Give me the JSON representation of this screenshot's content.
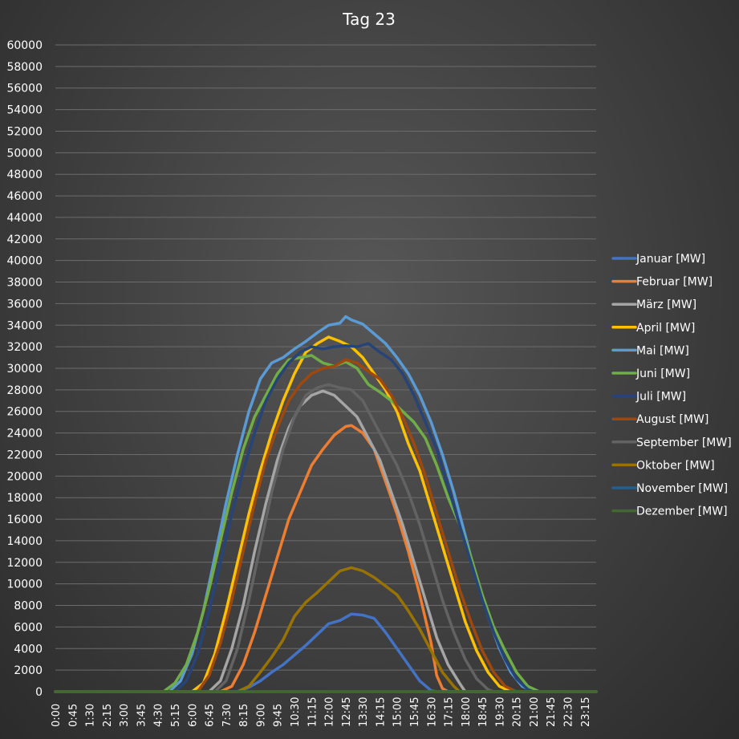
{
  "chart_data": {
    "type": "line",
    "title": "Tag 23",
    "xlabel": "",
    "ylabel": "",
    "ylim": [
      0,
      60000
    ],
    "yticks": [
      0,
      2000,
      4000,
      6000,
      8000,
      10000,
      12000,
      14000,
      16000,
      18000,
      20000,
      22000,
      24000,
      26000,
      28000,
      30000,
      32000,
      34000,
      36000,
      38000,
      40000,
      42000,
      44000,
      46000,
      48000,
      50000,
      52000,
      54000,
      56000,
      58000,
      60000
    ],
    "x_tick_labels": [
      "0:00",
      "0:45",
      "1:30",
      "2:15",
      "3:00",
      "3:45",
      "4:30",
      "5:15",
      "6:00",
      "6:45",
      "7:30",
      "8:15",
      "9:00",
      "9:45",
      "10:30",
      "11:15",
      "12:00",
      "12:45",
      "13:30",
      "14:15",
      "15:00",
      "15:45",
      "16:30",
      "17:15",
      "18:00",
      "18:45",
      "19:30",
      "20:15",
      "21:00",
      "21:45",
      "22:30",
      "23:15"
    ],
    "x_unit": "hour of day, 15-minute steps",
    "grid": true,
    "legend_position": "right",
    "series": [
      {
        "name": "Januar [MW]",
        "color": "#4472c4",
        "points": [
          [
            8.0,
            0
          ],
          [
            8.5,
            400
          ],
          [
            9.0,
            1000
          ],
          [
            9.5,
            1800
          ],
          [
            10.0,
            2500
          ],
          [
            10.5,
            3400
          ],
          [
            11.0,
            4300
          ],
          [
            11.5,
            5300
          ],
          [
            12.0,
            6300
          ],
          [
            12.5,
            6600
          ],
          [
            13.0,
            7200
          ],
          [
            13.5,
            7100
          ],
          [
            14.0,
            6800
          ],
          [
            14.5,
            5500
          ],
          [
            15.0,
            4000
          ],
          [
            15.5,
            2500
          ],
          [
            16.0,
            1000
          ],
          [
            16.5,
            100
          ],
          [
            16.75,
            0
          ]
        ]
      },
      {
        "name": "Februar [MW]",
        "color": "#ed7d31",
        "points": [
          [
            7.25,
            0
          ],
          [
            7.75,
            500
          ],
          [
            8.25,
            2500
          ],
          [
            8.75,
            5500
          ],
          [
            9.25,
            9000
          ],
          [
            9.75,
            12500
          ],
          [
            10.25,
            16000
          ],
          [
            10.75,
            18500
          ],
          [
            11.25,
            21000
          ],
          [
            11.75,
            22500
          ],
          [
            12.25,
            23800
          ],
          [
            12.75,
            24600
          ],
          [
            13.0,
            24700
          ],
          [
            13.5,
            24000
          ],
          [
            14.0,
            22500
          ],
          [
            14.5,
            19500
          ],
          [
            15.0,
            16500
          ],
          [
            15.5,
            13000
          ],
          [
            16.0,
            9000
          ],
          [
            16.5,
            4500
          ],
          [
            16.75,
            1500
          ],
          [
            17.0,
            300
          ],
          [
            17.25,
            0
          ]
        ]
      },
      {
        "name": "März [MW]",
        "color": "#a5a5a5",
        "points": [
          [
            6.75,
            0
          ],
          [
            7.25,
            1000
          ],
          [
            7.75,
            4000
          ],
          [
            8.25,
            8000
          ],
          [
            8.75,
            13000
          ],
          [
            9.25,
            17500
          ],
          [
            9.75,
            21500
          ],
          [
            10.25,
            24500
          ],
          [
            10.75,
            26500
          ],
          [
            11.25,
            27500
          ],
          [
            11.75,
            27900
          ],
          [
            12.25,
            27500
          ],
          [
            12.75,
            26500
          ],
          [
            13.25,
            25500
          ],
          [
            13.75,
            23500
          ],
          [
            14.25,
            21500
          ],
          [
            14.75,
            18500
          ],
          [
            15.25,
            15500
          ],
          [
            15.75,
            12000
          ],
          [
            16.25,
            8500
          ],
          [
            16.75,
            5000
          ],
          [
            17.25,
            2500
          ],
          [
            17.75,
            800
          ],
          [
            18.0,
            0
          ]
        ]
      },
      {
        "name": "April [MW]",
        "color": "#ffc000",
        "points": [
          [
            6.0,
            0
          ],
          [
            6.5,
            800
          ],
          [
            7.0,
            3500
          ],
          [
            7.5,
            7500
          ],
          [
            8.0,
            12000
          ],
          [
            8.5,
            16500
          ],
          [
            9.0,
            20500
          ],
          [
            9.5,
            24000
          ],
          [
            10.0,
            27000
          ],
          [
            10.5,
            29500
          ],
          [
            11.0,
            31500
          ],
          [
            11.5,
            32300
          ],
          [
            12.0,
            32900
          ],
          [
            12.5,
            32500
          ],
          [
            13.0,
            32000
          ],
          [
            13.5,
            31000
          ],
          [
            14.0,
            29500
          ],
          [
            14.5,
            28000
          ],
          [
            15.0,
            26000
          ],
          [
            15.5,
            23000
          ],
          [
            16.0,
            20500
          ],
          [
            16.5,
            17000
          ],
          [
            17.0,
            13500
          ],
          [
            17.5,
            10000
          ],
          [
            18.0,
            6500
          ],
          [
            18.5,
            3800
          ],
          [
            19.0,
            1800
          ],
          [
            19.5,
            500
          ],
          [
            20.0,
            0
          ]
        ]
      },
      {
        "name": "Mai [MW]",
        "color": "#5b9bd5",
        "points": [
          [
            5.0,
            0
          ],
          [
            5.5,
            1000
          ],
          [
            6.0,
            3500
          ],
          [
            6.5,
            7500
          ],
          [
            7.0,
            12500
          ],
          [
            7.5,
            17500
          ],
          [
            8.0,
            22000
          ],
          [
            8.5,
            26000
          ],
          [
            9.0,
            29000
          ],
          [
            9.5,
            30500
          ],
          [
            10.0,
            31000
          ],
          [
            10.5,
            31800
          ],
          [
            11.0,
            32500
          ],
          [
            11.5,
            33300
          ],
          [
            12.0,
            34000
          ],
          [
            12.5,
            34200
          ],
          [
            12.75,
            34800
          ],
          [
            13.0,
            34500
          ],
          [
            13.5,
            34100
          ],
          [
            14.0,
            33200
          ],
          [
            14.5,
            32300
          ],
          [
            15.0,
            31000
          ],
          [
            15.5,
            29500
          ],
          [
            16.0,
            27500
          ],
          [
            16.5,
            25000
          ],
          [
            17.0,
            22000
          ],
          [
            17.5,
            18500
          ],
          [
            18.0,
            14500
          ],
          [
            18.5,
            10500
          ],
          [
            19.0,
            7000
          ],
          [
            19.5,
            4000
          ],
          [
            20.0,
            1800
          ],
          [
            20.5,
            500
          ],
          [
            21.0,
            0
          ]
        ]
      },
      {
        "name": "Juni [MW]",
        "color": "#70ad47",
        "points": [
          [
            4.75,
            0
          ],
          [
            5.25,
            800
          ],
          [
            5.75,
            2500
          ],
          [
            6.25,
            5500
          ],
          [
            6.75,
            9500
          ],
          [
            7.25,
            14000
          ],
          [
            7.75,
            18500
          ],
          [
            8.25,
            22500
          ],
          [
            8.75,
            25500
          ],
          [
            9.25,
            27500
          ],
          [
            9.75,
            29500
          ],
          [
            10.25,
            30800
          ],
          [
            10.75,
            31000
          ],
          [
            11.25,
            31200
          ],
          [
            11.75,
            30500
          ],
          [
            12.25,
            30200
          ],
          [
            12.75,
            30600
          ],
          [
            13.25,
            30000
          ],
          [
            13.75,
            28500
          ],
          [
            14.25,
            27800
          ],
          [
            14.75,
            27000
          ],
          [
            15.25,
            26000
          ],
          [
            15.75,
            25000
          ],
          [
            16.25,
            23500
          ],
          [
            16.75,
            21000
          ],
          [
            17.25,
            18000
          ],
          [
            17.75,
            15500
          ],
          [
            18.25,
            12500
          ],
          [
            18.75,
            9000
          ],
          [
            19.25,
            6000
          ],
          [
            19.75,
            3800
          ],
          [
            20.25,
            1800
          ],
          [
            20.75,
            500
          ],
          [
            21.25,
            0
          ]
        ]
      },
      {
        "name": "Juli [MW]",
        "color": "#264478",
        "points": [
          [
            5.25,
            0
          ],
          [
            5.75,
            1000
          ],
          [
            6.25,
            3500
          ],
          [
            6.75,
            7500
          ],
          [
            7.25,
            12000
          ],
          [
            7.75,
            16500
          ],
          [
            8.25,
            20500
          ],
          [
            8.75,
            24000
          ],
          [
            9.25,
            27000
          ],
          [
            9.75,
            29000
          ],
          [
            10.25,
            30500
          ],
          [
            10.75,
            31500
          ],
          [
            11.25,
            32000
          ],
          [
            11.75,
            31800
          ],
          [
            12.25,
            32000
          ],
          [
            12.75,
            32100
          ],
          [
            13.25,
            32000
          ],
          [
            13.75,
            32300
          ],
          [
            14.25,
            31500
          ],
          [
            14.75,
            30800
          ],
          [
            15.25,
            29500
          ],
          [
            15.75,
            27500
          ],
          [
            16.25,
            25000
          ],
          [
            16.75,
            22500
          ],
          [
            17.25,
            19000
          ],
          [
            17.75,
            15500
          ],
          [
            18.25,
            12000
          ],
          [
            18.75,
            8500
          ],
          [
            19.25,
            5500
          ],
          [
            19.75,
            3000
          ],
          [
            20.25,
            1200
          ],
          [
            20.75,
            200
          ],
          [
            21.0,
            0
          ]
        ]
      },
      {
        "name": "August [MW]",
        "color": "#9e480e",
        "points": [
          [
            6.25,
            0
          ],
          [
            6.75,
            1500
          ],
          [
            7.25,
            4500
          ],
          [
            7.75,
            8500
          ],
          [
            8.25,
            13000
          ],
          [
            8.75,
            17500
          ],
          [
            9.25,
            21500
          ],
          [
            9.75,
            24500
          ],
          [
            10.25,
            27000
          ],
          [
            10.75,
            28500
          ],
          [
            11.25,
            29500
          ],
          [
            11.75,
            30000
          ],
          [
            12.25,
            30200
          ],
          [
            12.75,
            30800
          ],
          [
            13.25,
            30500
          ],
          [
            13.75,
            29700
          ],
          [
            14.25,
            29000
          ],
          [
            14.75,
            27500
          ],
          [
            15.25,
            25500
          ],
          [
            15.75,
            23000
          ],
          [
            16.25,
            20000
          ],
          [
            16.75,
            16500
          ],
          [
            17.25,
            13000
          ],
          [
            17.75,
            9500
          ],
          [
            18.25,
            6500
          ],
          [
            18.75,
            3800
          ],
          [
            19.25,
            1800
          ],
          [
            19.75,
            500
          ],
          [
            20.25,
            0
          ]
        ]
      },
      {
        "name": "September [MW]",
        "color": "#636363",
        "points": [
          [
            7.0,
            0
          ],
          [
            7.5,
            1000
          ],
          [
            8.0,
            4000
          ],
          [
            8.5,
            8500
          ],
          [
            9.0,
            13500
          ],
          [
            9.5,
            18500
          ],
          [
            10.0,
            22500
          ],
          [
            10.5,
            25500
          ],
          [
            11.0,
            27500
          ],
          [
            11.5,
            28200
          ],
          [
            12.0,
            28500
          ],
          [
            12.5,
            28200
          ],
          [
            13.0,
            28000
          ],
          [
            13.5,
            27000
          ],
          [
            14.0,
            25000
          ],
          [
            14.5,
            23000
          ],
          [
            15.0,
            21000
          ],
          [
            15.5,
            18500
          ],
          [
            16.0,
            15500
          ],
          [
            16.5,
            12000
          ],
          [
            17.0,
            8500
          ],
          [
            17.5,
            5500
          ],
          [
            18.0,
            3000
          ],
          [
            18.5,
            1200
          ],
          [
            19.0,
            200
          ],
          [
            19.25,
            0
          ]
        ]
      },
      {
        "name": "Oktober [MW]",
        "color": "#997300",
        "points": [
          [
            8.0,
            0
          ],
          [
            8.5,
            500
          ],
          [
            9.0,
            1800
          ],
          [
            9.5,
            3200
          ],
          [
            10.0,
            4800
          ],
          [
            10.5,
            7000
          ],
          [
            11.0,
            8300
          ],
          [
            11.5,
            9200
          ],
          [
            12.0,
            10200
          ],
          [
            12.5,
            11200
          ],
          [
            13.0,
            11500
          ],
          [
            13.5,
            11200
          ],
          [
            14.0,
            10600
          ],
          [
            14.5,
            9800
          ],
          [
            15.0,
            9000
          ],
          [
            15.5,
            7500
          ],
          [
            16.0,
            5800
          ],
          [
            16.5,
            3800
          ],
          [
            17.0,
            1800
          ],
          [
            17.5,
            500
          ],
          [
            17.75,
            0
          ]
        ]
      },
      {
        "name": "November [MW]",
        "color": "#255e91",
        "points": [
          [
            0.0,
            0
          ],
          [
            23.75,
            0
          ]
        ]
      },
      {
        "name": "Dezember [MW]",
        "color": "#43682b",
        "points": [
          [
            0.0,
            0
          ],
          [
            23.75,
            0
          ]
        ]
      }
    ]
  }
}
